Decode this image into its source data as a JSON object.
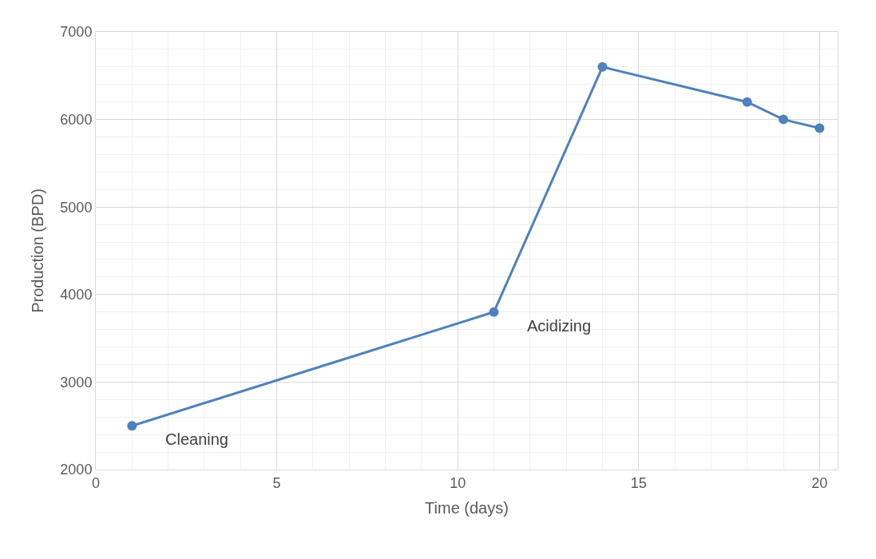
{
  "chart_data": {
    "type": "line",
    "xlabel": "Time (days)",
    "ylabel": "Production (BPD)",
    "x": [
      1,
      11,
      14,
      18,
      19,
      20
    ],
    "series": [
      {
        "color": "#4f81bd",
        "values": [
          2500,
          3800,
          6600,
          6200,
          6000,
          5900
        ]
      }
    ],
    "xlim": [
      0,
      20.5
    ],
    "xticks": [
      0,
      5,
      10,
      15,
      20
    ],
    "ylim": [
      2000,
      7000
    ],
    "yticks": [
      2000,
      3000,
      4000,
      5000,
      6000,
      7000
    ],
    "grid": true,
    "marker": "circle",
    "line_style": "solid",
    "legend": false,
    "annotations": [
      {
        "text": "Cleaning",
        "x": 1,
        "y": 2500
      },
      {
        "text": "Acidizing",
        "x": 11,
        "y": 3800
      }
    ]
  }
}
